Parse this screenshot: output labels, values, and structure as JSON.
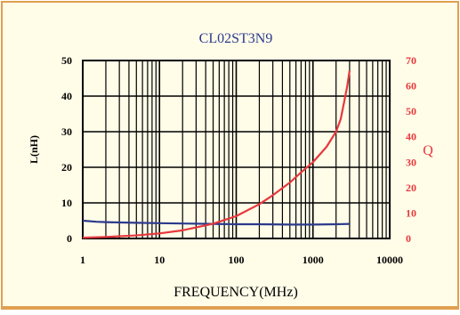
{
  "chart_data": {
    "type": "line",
    "title": "CL02ST3N9",
    "xlabel": "FREQUENCY(MHz)",
    "ylabel_left": "L(nH)",
    "ylabel_right": "Q",
    "x_scale": "log",
    "xlim": [
      1,
      10000
    ],
    "ylim_left": [
      0,
      50
    ],
    "ylim_right": [
      0,
      70
    ],
    "x_ticks": [
      "1",
      "10",
      "100",
      "1000",
      "10000"
    ],
    "y_ticks_left": [
      "0",
      "10",
      "20",
      "30",
      "40",
      "50"
    ],
    "y_ticks_right": [
      "0",
      "10",
      "20",
      "30",
      "40",
      "50",
      "60",
      "70"
    ],
    "grid": true,
    "legend": "none",
    "series": [
      {
        "axis": "left",
        "color": "#2b3a8c",
        "x": [
          1,
          1.5,
          2,
          3,
          5,
          10,
          20,
          50,
          100,
          200,
          500,
          1000,
          2000,
          3000
        ],
        "values": [
          5.0,
          4.7,
          4.6,
          4.5,
          4.4,
          4.3,
          4.2,
          4.1,
          4.0,
          4.0,
          3.9,
          3.9,
          4.0,
          4.1
        ]
      },
      {
        "axis": "right",
        "color": "#e8383d",
        "x": [
          1,
          2,
          5,
          10,
          20,
          50,
          100,
          200,
          300,
          500,
          700,
          1000,
          1500,
          2000,
          2300,
          2600,
          2800,
          3000
        ],
        "values": [
          0.3,
          0.6,
          1.2,
          2.0,
          3.2,
          5.8,
          8.8,
          13.5,
          17.0,
          22.0,
          26.0,
          30.0,
          36.0,
          42.0,
          47.0,
          55.0,
          60.0,
          66.0
        ]
      }
    ]
  }
}
